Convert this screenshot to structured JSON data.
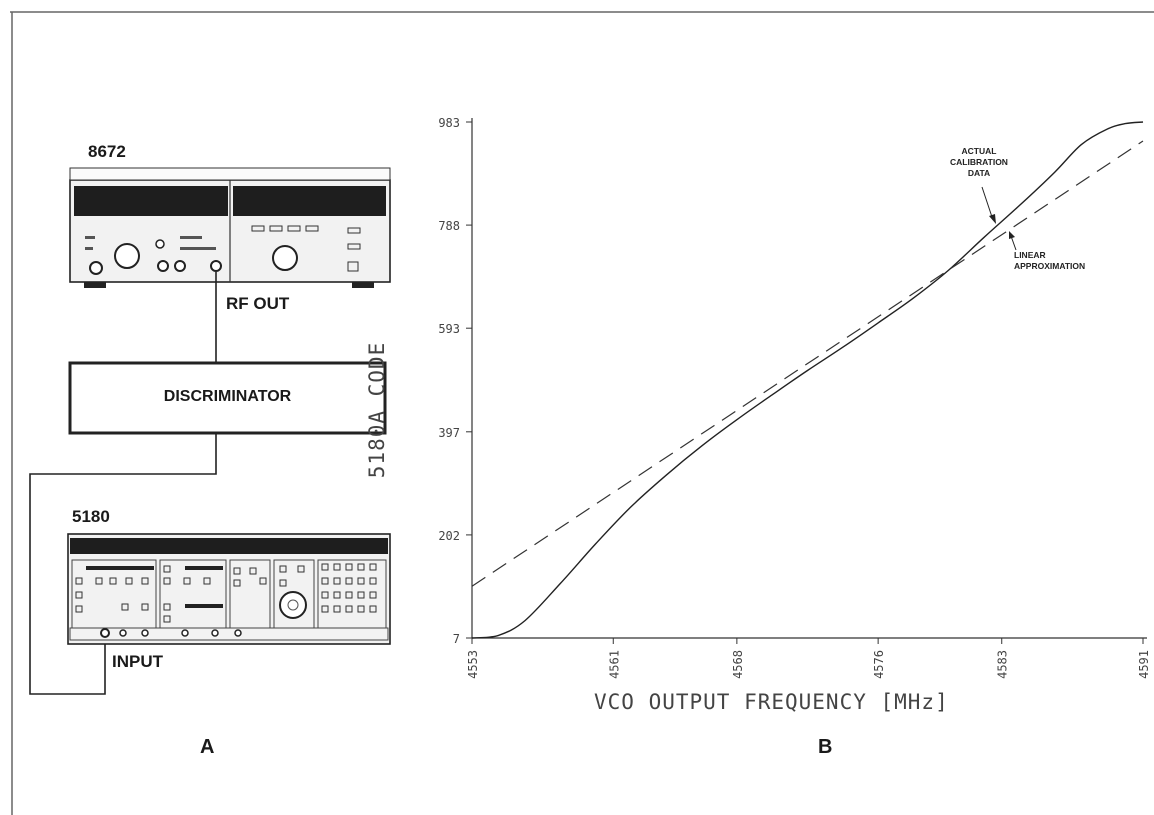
{
  "panel_a": {
    "label": "A",
    "generator": {
      "model": "8672",
      "output_label": "RF OUT"
    },
    "discriminator": {
      "label": "DISCRIMINATOR"
    },
    "counter": {
      "model": "5180",
      "input_label": "INPUT"
    }
  },
  "panel_b": {
    "label": "B",
    "annotations": {
      "actual": [
        "ACTUAL",
        "CALIBRATION",
        "DATA"
      ],
      "linear": [
        "LINEAR",
        "APPROXIMATION"
      ]
    }
  },
  "chart_data": {
    "type": "line",
    "xlabel": "VCO OUTPUT FREQUENCY [MHz]",
    "ylabel": "5180A CODE",
    "xlim": [
      4553,
      4591
    ],
    "ylim": [
      7,
      983
    ],
    "x_ticks": [
      "4553",
      "4561",
      "4568",
      "4576",
      "4583",
      "4591"
    ],
    "y_ticks": [
      "7",
      "202",
      "397",
      "593",
      "788",
      "983"
    ],
    "grid": false,
    "series": [
      {
        "name": "ACTUAL CALIBRATION DATA",
        "style": "solid",
        "x": [
          4553,
          4554.5,
          4556,
          4558,
          4560,
          4562,
          4564,
          4566,
          4568,
          4570,
          4572,
          4574,
          4576,
          4578,
          4580,
          4582,
          4584,
          4586,
          4587.5,
          4589,
          4590,
          4591
        ],
        "y": [
          7,
          12,
          40,
          110,
          185,
          255,
          315,
          370,
          420,
          467,
          513,
          557,
          603,
          650,
          703,
          765,
          825,
          888,
          940,
          970,
          980,
          983
        ]
      },
      {
        "name": "LINEAR APPROXIMATION",
        "style": "dashed",
        "x": [
          4553,
          4591
        ],
        "y": [
          105,
          947
        ]
      }
    ]
  }
}
